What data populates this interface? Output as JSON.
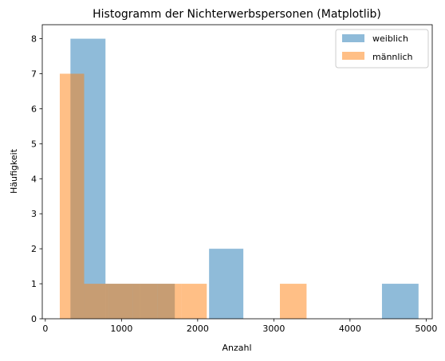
{
  "chart_data": {
    "type": "histogram",
    "title": "Histogramm der Nichterwerbspersonen (Matplotlib)",
    "xlabel": "Anzahl",
    "ylabel": "Häufigkeit",
    "xlim": [
      -40,
      5080
    ],
    "ylim": [
      0,
      8.4
    ],
    "xticks": [
      0,
      1000,
      2000,
      3000,
      4000,
      5000
    ],
    "yticks": [
      0,
      1,
      2,
      3,
      4,
      5,
      6,
      7,
      8
    ],
    "legend_position": "upper right",
    "series": [
      {
        "name": "weiblich",
        "color": "#1f77b4",
        "alpha": 0.5,
        "bins": [
          {
            "x0": 330,
            "x1": 790,
            "count": 8
          },
          {
            "x0": 790,
            "x1": 1240,
            "count": 1
          },
          {
            "x0": 1240,
            "x1": 1700,
            "count": 1
          },
          {
            "x0": 1700,
            "x1": 2150,
            "count": 0
          },
          {
            "x0": 2150,
            "x1": 2600,
            "count": 2
          },
          {
            "x0": 2600,
            "x1": 3060,
            "count": 0
          },
          {
            "x0": 3060,
            "x1": 3510,
            "count": 0
          },
          {
            "x0": 3510,
            "x1": 3970,
            "count": 0
          },
          {
            "x0": 3970,
            "x1": 4420,
            "count": 0
          },
          {
            "x0": 4420,
            "x1": 4900,
            "count": 1
          }
        ]
      },
      {
        "name": "männlich",
        "color": "#ff7f0e",
        "alpha": 0.5,
        "bins": [
          {
            "x0": 190,
            "x1": 510,
            "count": 7
          },
          {
            "x0": 510,
            "x1": 830,
            "count": 1
          },
          {
            "x0": 830,
            "x1": 1150,
            "count": 1
          },
          {
            "x0": 1150,
            "x1": 1470,
            "count": 1
          },
          {
            "x0": 1470,
            "x1": 1790,
            "count": 1
          },
          {
            "x0": 1790,
            "x1": 2120,
            "count": 1
          },
          {
            "x0": 2120,
            "x1": 2440,
            "count": 0
          },
          {
            "x0": 2440,
            "x1": 2760,
            "count": 0
          },
          {
            "x0": 2760,
            "x1": 3080,
            "count": 0
          },
          {
            "x0": 3080,
            "x1": 3430,
            "count": 1
          }
        ]
      }
    ]
  }
}
